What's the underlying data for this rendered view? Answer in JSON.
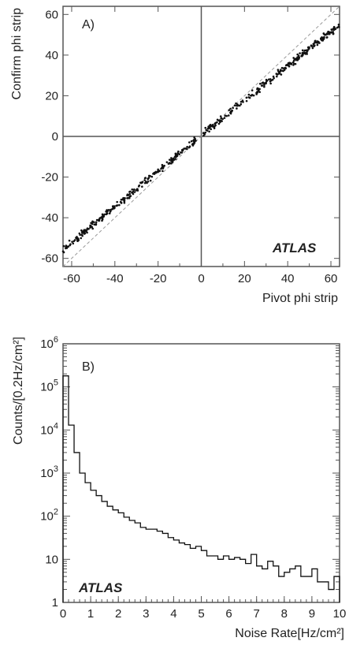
{
  "chart_data": [
    {
      "type": "scatter",
      "panel_label": "A)",
      "watermark": "ATLAS",
      "xlabel": "Pivot phi strip",
      "ylabel": "Confirm phi strip",
      "xlim": [
        -64,
        64
      ],
      "ylim": [
        -64,
        64
      ],
      "x_ticks": [
        "-60",
        "-40",
        "-20",
        "0",
        "20",
        "40",
        "60"
      ],
      "y_ticks": [
        "-60",
        "-40",
        "-20",
        "0",
        "20",
        "40",
        "60"
      ],
      "reference_line": "dashed diagonal y = x",
      "grid": false,
      "series_trend": {
        "positive_branch": {
          "x_range": [
            1,
            64
          ],
          "y_at_x": "0.84*x + 1"
        },
        "negative_branch": {
          "x_range": [
            -64,
            -2
          ],
          "y_at_x": "0.88*x + 0.5"
        }
      }
    },
    {
      "type": "histogram",
      "panel_label": "B)",
      "watermark": "ATLAS",
      "xlabel": "Noise Rate[Hz/cm²]",
      "ylabel": "Counts/[0.2Hz/cm²]",
      "xlim": [
        0,
        10
      ],
      "ylim": [
        1,
        1000000
      ],
      "log_y": true,
      "bin_width": 0.2,
      "x_ticks": [
        "0",
        "1",
        "2",
        "3",
        "4",
        "5",
        "6",
        "7",
        "8",
        "9",
        "10"
      ],
      "y_ticks": [
        {
          "base": "1",
          "exp": ""
        },
        {
          "base": "10",
          "exp": ""
        },
        {
          "base": "10",
          "exp": "2"
        },
        {
          "base": "10",
          "exp": "3"
        },
        {
          "base": "10",
          "exp": "4"
        },
        {
          "base": "10",
          "exp": "5"
        },
        {
          "base": "10",
          "exp": "6"
        }
      ],
      "bin_edges_start": 0,
      "values": [
        180000,
        13000,
        3000,
        1000,
        600,
        400,
        300,
        220,
        170,
        140,
        120,
        95,
        80,
        70,
        55,
        50,
        50,
        45,
        40,
        32,
        28,
        24,
        22,
        18,
        20,
        16,
        12,
        12,
        10,
        12,
        10,
        11,
        10,
        8,
        13,
        7,
        6,
        9,
        7,
        4,
        5,
        6,
        7,
        4,
        4,
        6,
        3,
        3,
        2,
        4
      ],
      "grid": false
    }
  ]
}
